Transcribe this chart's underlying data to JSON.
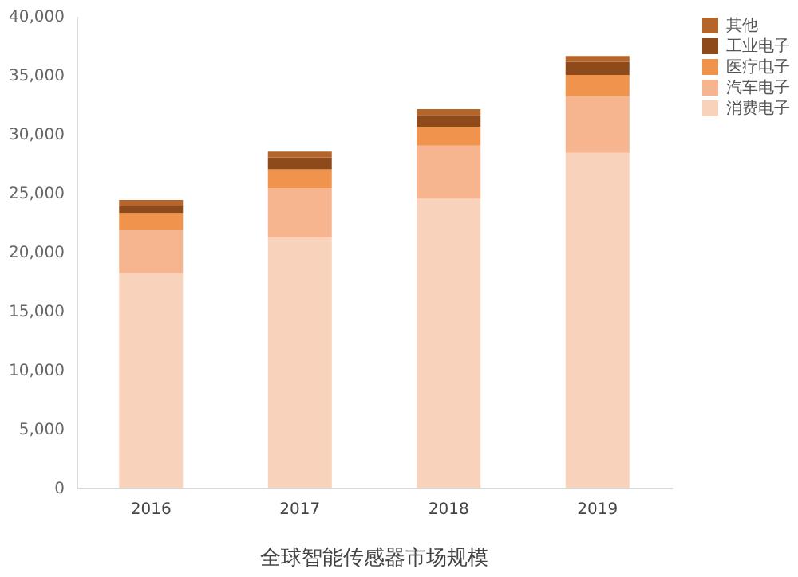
{
  "chart_data": {
    "type": "bar",
    "title": "全球智能传感器市场规模",
    "categories": [
      "2016",
      "2017",
      "2018",
      "2019"
    ],
    "stacked": true,
    "series": [
      {
        "name": "消费电子",
        "color": "#f9d2bc",
        "values": [
          18200,
          21200,
          24500,
          28400
        ]
      },
      {
        "name": "汽车电子",
        "color": "#f6b48f",
        "values": [
          3700,
          4200,
          4500,
          4800
        ]
      },
      {
        "name": "医疗电子",
        "color": "#f0944d",
        "values": [
          1400,
          1600,
          1600,
          1800
        ]
      },
      {
        "name": "工业电子",
        "color": "#8f4a1c",
        "values": [
          600,
          1000,
          1000,
          1100
        ]
      },
      {
        "name": "其他",
        "color": "#b5652a",
        "values": [
          500,
          500,
          500,
          500
        ]
      }
    ],
    "ylim": [
      0,
      40000
    ],
    "yticks": [
      0,
      {
        "value": 5000,
        "label": "5,000"
      },
      {
        "value": 10000,
        "label": "10,000"
      },
      {
        "value": 15000,
        "label": "15,000"
      },
      {
        "value": 20000,
        "label": "20,000"
      },
      {
        "value": 25000,
        "label": "25,000"
      },
      {
        "value": 30000,
        "label": "30,000"
      },
      {
        "value": 35000,
        "label": "35,000"
      },
      {
        "value": 40000,
        "label": "40,000"
      }
    ],
    "grid": false,
    "legend": "right"
  }
}
